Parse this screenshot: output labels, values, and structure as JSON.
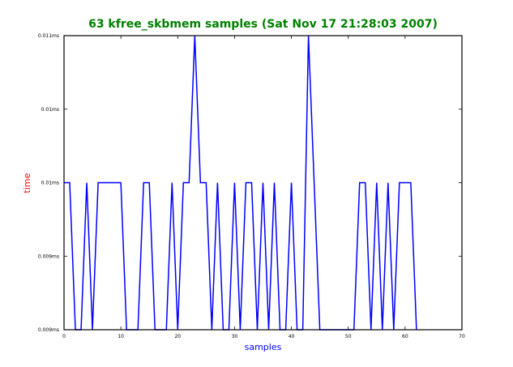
{
  "chart_data": {
    "type": "line",
    "title": "63 kfree_skbmem samples (Sat Nov 17 21:28:03 2007)",
    "xlabel": "samples",
    "ylabel": "time",
    "colors": {
      "title": "#008000",
      "xlabel": "#0000ff",
      "ylabel": "#ff0000",
      "line": "#0000ff"
    },
    "xlim": [
      0,
      70
    ],
    "ylim": [
      0,
      4
    ],
    "x_ticks": [
      {
        "v": 0,
        "label": "0"
      },
      {
        "v": 10,
        "label": "10"
      },
      {
        "v": 20,
        "label": "20"
      },
      {
        "v": 30,
        "label": "30"
      },
      {
        "v": 40,
        "label": "40"
      },
      {
        "v": 50,
        "label": "50"
      },
      {
        "v": 60,
        "label": "60"
      },
      {
        "v": 70,
        "label": "70"
      }
    ],
    "y_ticks": [
      {
        "v": 0,
        "label": "0.009ms"
      },
      {
        "v": 1,
        "label": "0.009ms"
      },
      {
        "v": 2,
        "label": "0.01ms"
      },
      {
        "v": 3,
        "label": "0.01ms"
      },
      {
        "v": 4,
        "label": "0.011ms"
      }
    ],
    "series": [
      {
        "x": [
          0,
          1,
          2,
          3,
          4,
          5,
          6,
          7,
          8,
          9,
          10,
          11,
          12,
          13,
          14,
          15,
          16,
          17,
          18,
          19,
          20,
          21,
          22,
          23,
          24,
          25,
          26,
          27,
          28,
          29,
          30,
          31,
          32,
          33,
          34,
          35,
          36,
          37,
          38,
          39,
          40,
          41,
          42,
          43,
          44,
          45,
          46,
          47,
          48,
          49,
          50,
          51,
          52,
          53,
          54,
          55,
          56,
          57,
          58,
          59,
          60,
          61,
          62
        ],
        "y": [
          2,
          2,
          0,
          0,
          2,
          0,
          2,
          2,
          2,
          2,
          2,
          0,
          0,
          0,
          2,
          2,
          0,
          0,
          0,
          2,
          0,
          2,
          2,
          4,
          2,
          2,
          0,
          2,
          0,
          0,
          2,
          0,
          2,
          2,
          0,
          2,
          0,
          2,
          0,
          0,
          2,
          0,
          0,
          4,
          2,
          0,
          0,
          0,
          0,
          0,
          0,
          0,
          2,
          2,
          0,
          2,
          0,
          2,
          0,
          2,
          2,
          2,
          0
        ]
      }
    ]
  }
}
